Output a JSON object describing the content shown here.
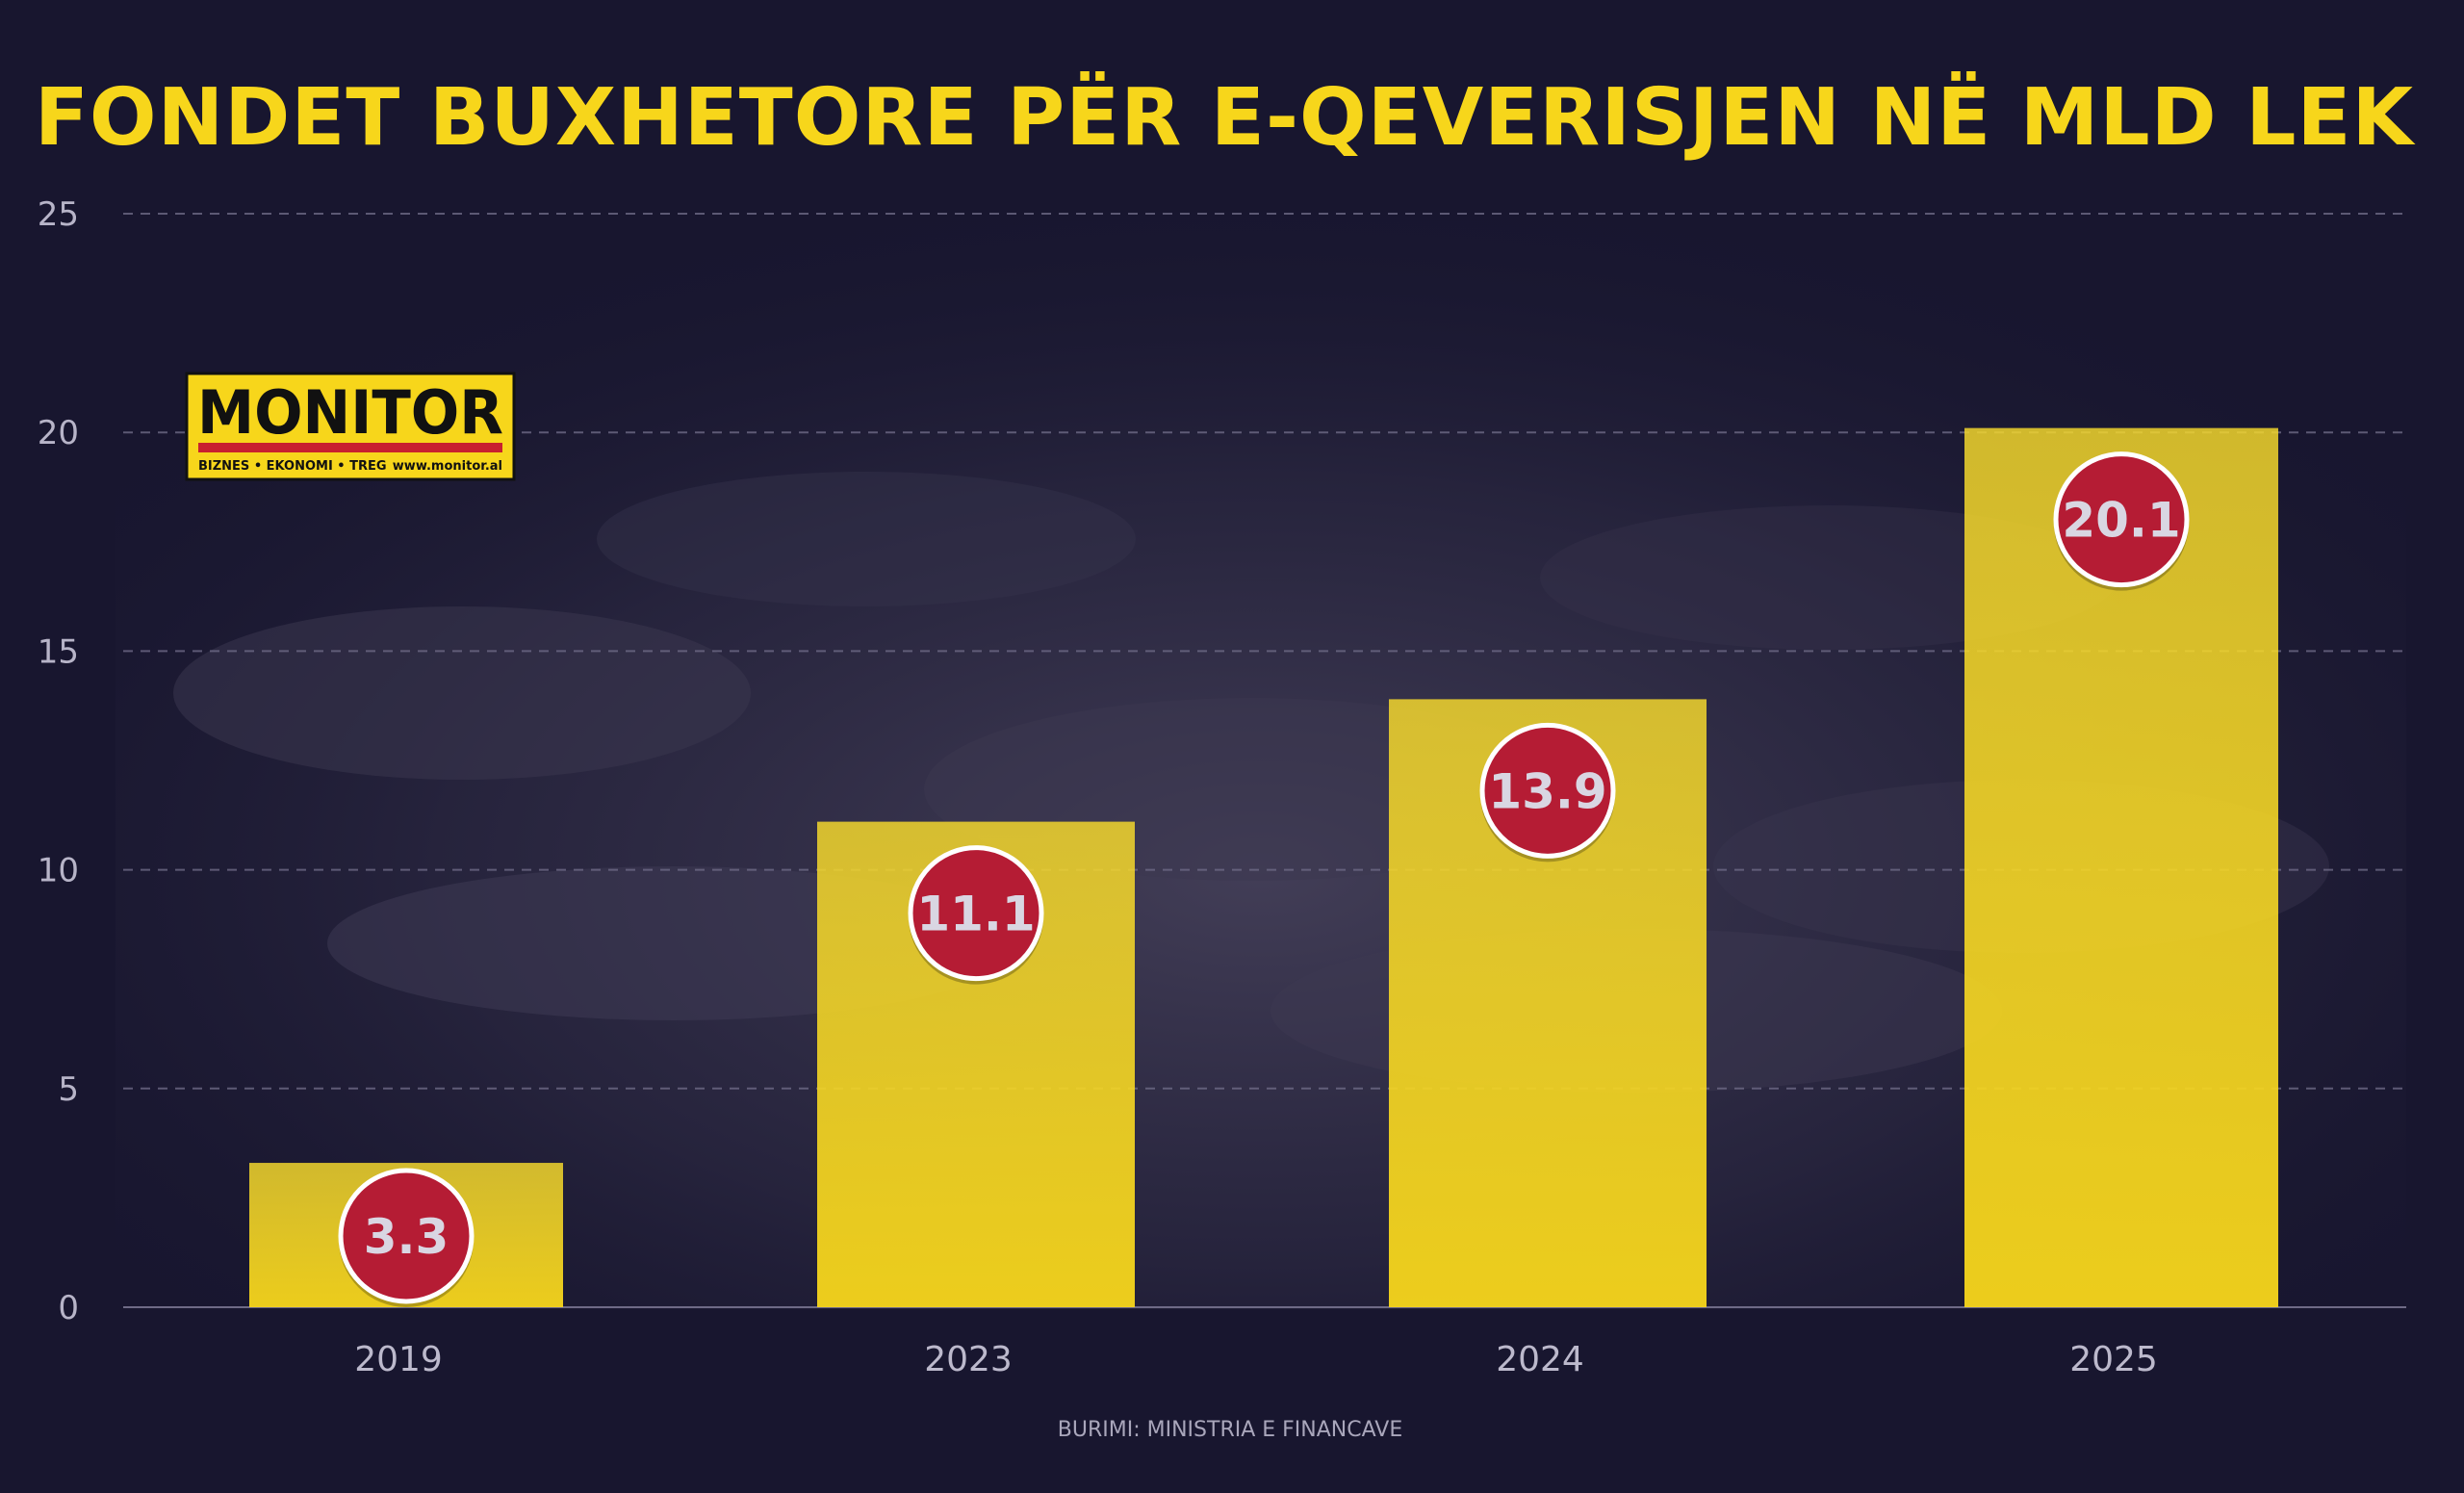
{
  "chart_data": {
    "type": "bar",
    "title": "FONDET  BUXHETORE PËR E-QEVERISJEN NË MLD LEK",
    "categories": [
      "2019",
      "2023",
      "2024",
      "2025"
    ],
    "values": [
      3.3,
      11.1,
      13.9,
      20.1
    ],
    "data_labels": [
      "3.3",
      "11.1",
      "13.9",
      "20.1"
    ],
    "y_ticks": [
      "0",
      "5",
      "10",
      "15",
      "20",
      "25"
    ],
    "ylim": [
      0,
      25
    ],
    "grid": true,
    "xlabel": "",
    "ylabel": "",
    "source": "BURIMI: MINISTRIA E FINANCAVE"
  },
  "logo": {
    "name": "MONITOR",
    "tagline": "BIZNES  •  EKONOMI  •  TREG",
    "site": "www.monitor.al"
  },
  "colors": {
    "background": "#18162f",
    "bar": "#f7d61b",
    "badge": "#b51c34",
    "title": "#f7d61b",
    "grid": "#6e6a86"
  }
}
